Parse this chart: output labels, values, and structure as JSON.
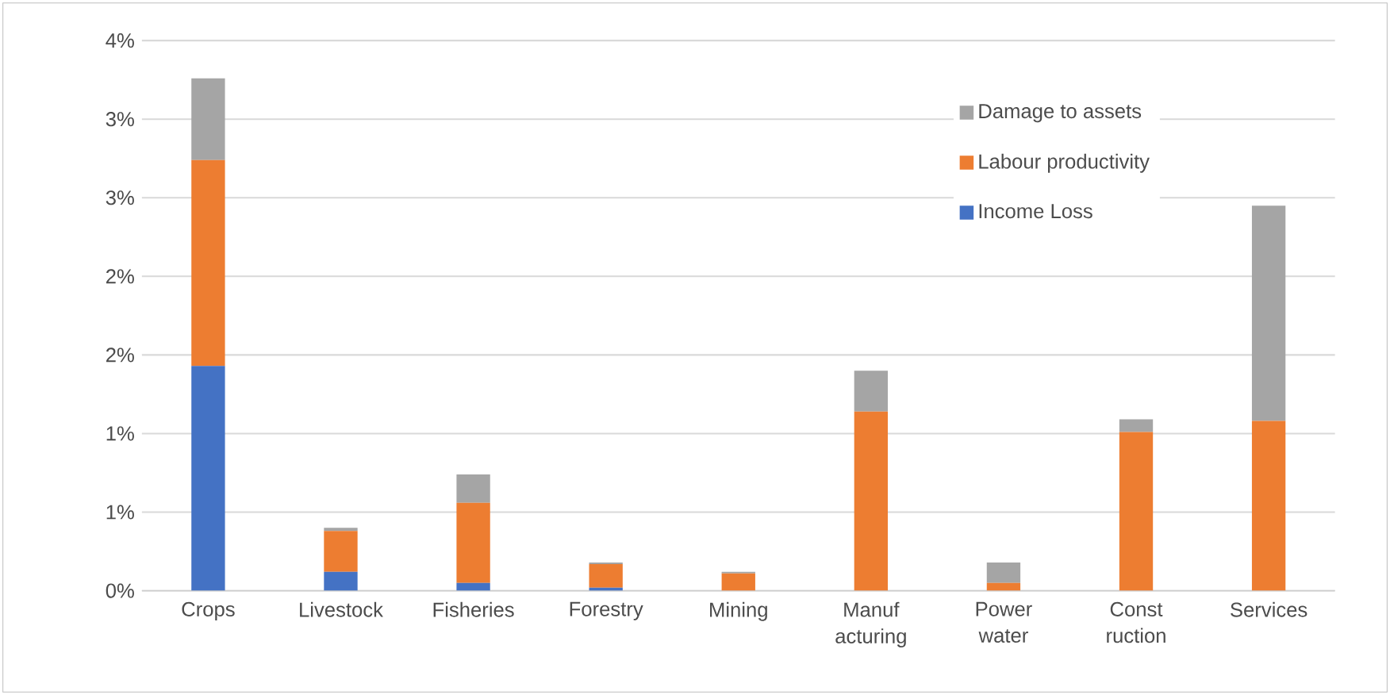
{
  "chart_data": {
    "type": "bar",
    "stacked": true,
    "categories": [
      "Crops",
      "Livestock",
      "Fisheries",
      "Forestry",
      "Mining",
      "Manuf acturing",
      "Power water",
      "Const ruction",
      "Services"
    ],
    "series": [
      {
        "name": "Income Loss",
        "color": "#4472c4",
        "values": [
          1.43,
          0.12,
          0.05,
          0.02,
          0,
          0,
          0,
          0,
          0
        ]
      },
      {
        "name": "Labour productivity",
        "color": "#ed7d31",
        "values": [
          1.31,
          0.26,
          0.51,
          0.15,
          0.11,
          1.14,
          0.05,
          1.01,
          1.08
        ]
      },
      {
        "name": "Damage to assets",
        "color": "#a5a5a5",
        "values": [
          0.52,
          0.02,
          0.18,
          0.01,
          0.01,
          0.26,
          0.13,
          0.08,
          1.37
        ]
      }
    ],
    "ylim": [
      0,
      3.5
    ],
    "yticks": [
      {
        "value": 0,
        "label": "0%"
      },
      {
        "value": 0.5,
        "label": "1%"
      },
      {
        "value": 1,
        "label": "1%"
      },
      {
        "value": 1.5,
        "label": "2%"
      },
      {
        "value": 2,
        "label": "2%"
      },
      {
        "value": 2.5,
        "label": "3%"
      },
      {
        "value": 3,
        "label": "3%"
      },
      {
        "value": 3.5,
        "label": "4%"
      }
    ],
    "grid": "y",
    "legend": "top right"
  }
}
